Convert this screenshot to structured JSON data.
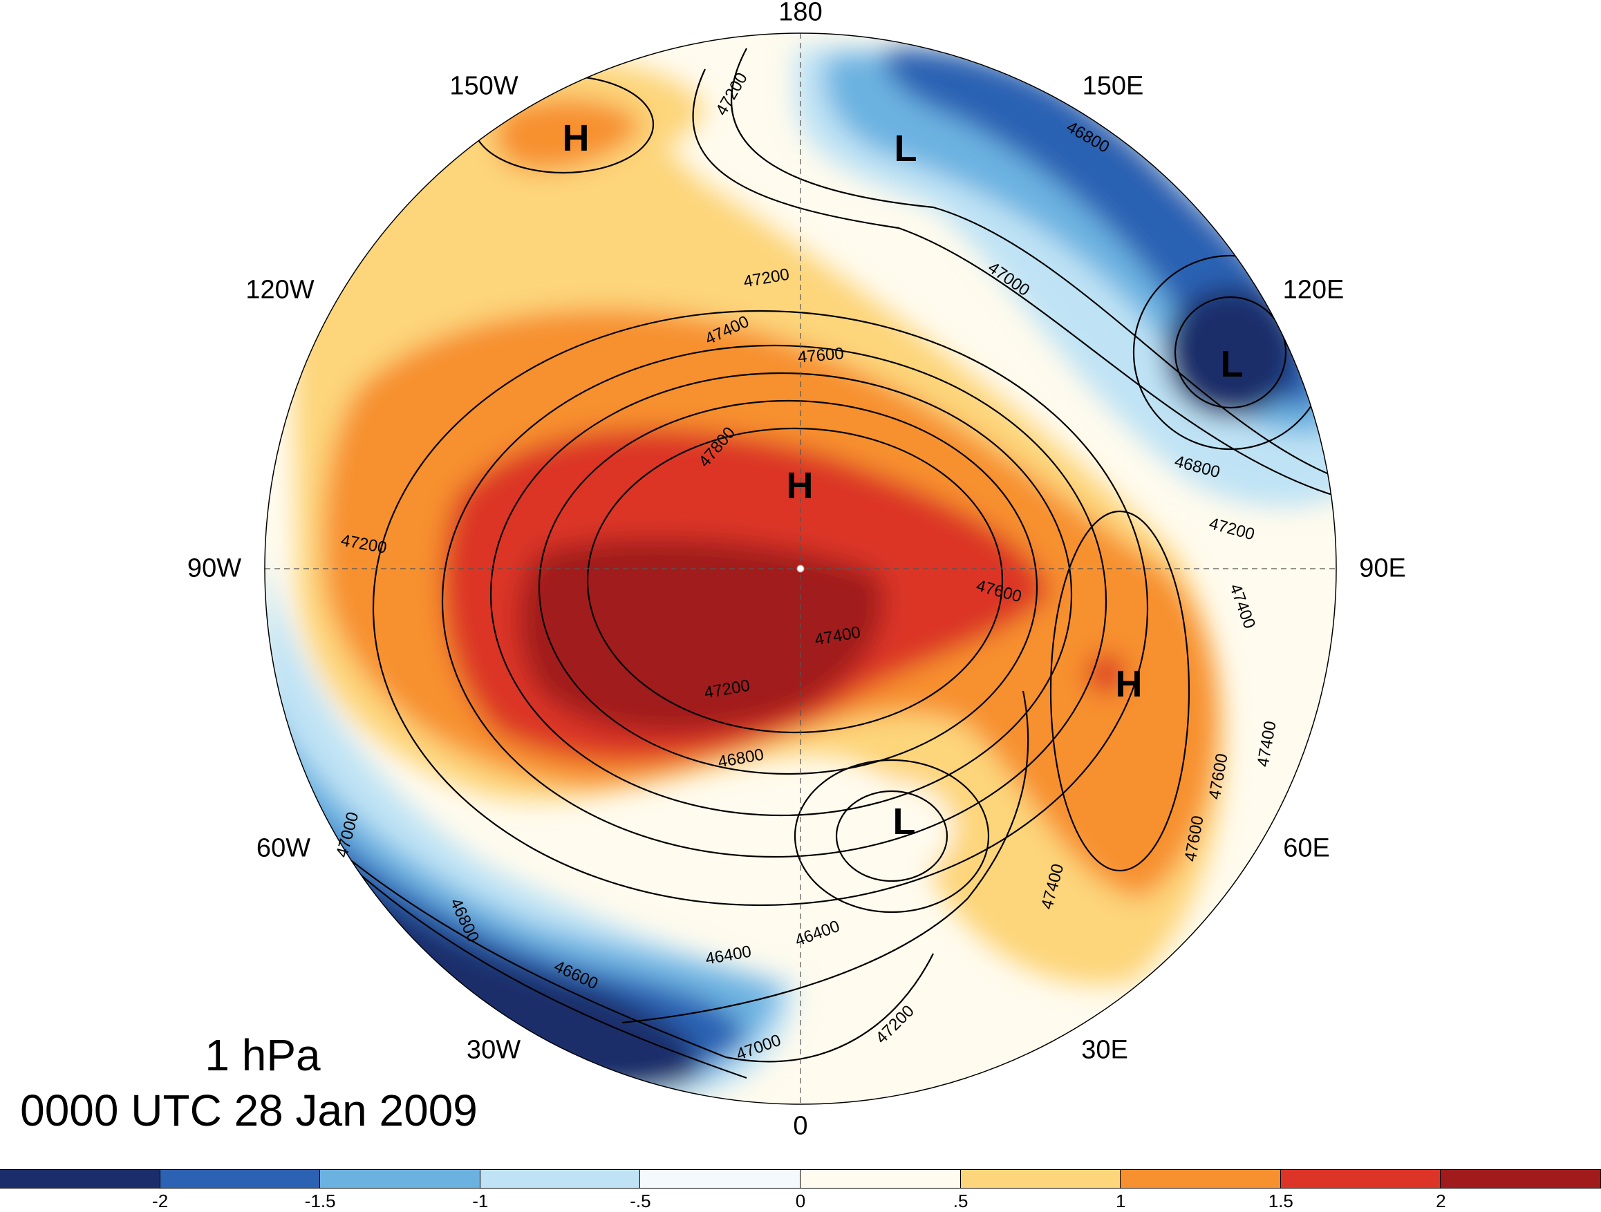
{
  "map": {
    "title": "1 hPa",
    "subtitle": "0000 UTC 28 Jan 2009",
    "longitude_labels": [
      {
        "text": "180"
      },
      {
        "text": "150W"
      },
      {
        "text": "150E"
      },
      {
        "text": "120W"
      },
      {
        "text": "120E"
      },
      {
        "text": "90W"
      },
      {
        "text": "90E"
      },
      {
        "text": "60W"
      },
      {
        "text": "60E"
      },
      {
        "text": "30W"
      },
      {
        "text": "30E"
      },
      {
        "text": "0"
      }
    ],
    "pressure_centers": [
      {
        "symbol": "H"
      },
      {
        "symbol": "L"
      },
      {
        "symbol": "L"
      },
      {
        "symbol": "H"
      },
      {
        "symbol": "H"
      },
      {
        "symbol": "L"
      }
    ],
    "contour_labels": [
      {
        "text": "47200"
      },
      {
        "text": "46800"
      },
      {
        "text": "47000"
      },
      {
        "text": "47200"
      },
      {
        "text": "47400"
      },
      {
        "text": "47600"
      },
      {
        "text": "47800"
      },
      {
        "text": "46800"
      },
      {
        "text": "47200"
      },
      {
        "text": "47200"
      },
      {
        "text": "47400"
      },
      {
        "text": "47600"
      },
      {
        "text": "47400"
      },
      {
        "text": "47200"
      },
      {
        "text": "46800"
      },
      {
        "text": "47400"
      },
      {
        "text": "47600"
      },
      {
        "text": "47600"
      },
      {
        "text": "47400"
      },
      {
        "text": "47000"
      },
      {
        "text": "46800"
      },
      {
        "text": "46600"
      },
      {
        "text": "46400"
      },
      {
        "text": "46400"
      },
      {
        "text": "47000"
      },
      {
        "text": "47200"
      }
    ]
  },
  "colorbar": {
    "colors": [
      "#1c2d6b",
      "#2b62b3",
      "#6cb2e1",
      "#bfe3f5",
      "#f4f9fd",
      "#fffbee",
      "#fdd57a",
      "#f7902f",
      "#dc3427",
      "#a11a1c"
    ],
    "labels": [
      "-2",
      "-1.5",
      "-1",
      "-.5",
      "0",
      ".5",
      "1",
      "1.5",
      "2"
    ]
  }
}
